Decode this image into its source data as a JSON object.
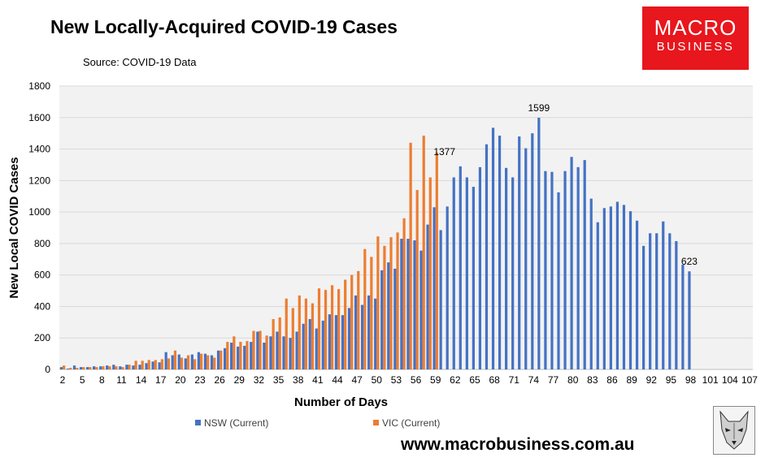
{
  "header": {
    "title": "New Locally-Acquired COVID-19 Cases",
    "source": "Source: COVID-19 Data"
  },
  "logo": {
    "line1": "MACRO",
    "line2": "BUSINESS"
  },
  "footer": {
    "url": "www.macrobusiness.com.au"
  },
  "colors": {
    "nsw": "#4472C4",
    "vic": "#ED7D31",
    "grid": "#D9D9D9",
    "plot_bg": "#F2F2F2",
    "logo_bg": "#E8161D"
  },
  "chart_data": {
    "type": "bar",
    "title": "New Locally-Acquired COVID-19 Cases",
    "xlabel": "Number of Days",
    "ylabel": "New Local COVID Cases",
    "ylim": [
      0,
      1800
    ],
    "yticks": [
      0,
      200,
      400,
      600,
      800,
      1000,
      1200,
      1400,
      1600,
      1800
    ],
    "xlim": [
      2,
      107
    ],
    "xticks": [
      2,
      5,
      8,
      11,
      14,
      17,
      20,
      23,
      26,
      29,
      32,
      35,
      38,
      41,
      44,
      47,
      50,
      53,
      56,
      59,
      62,
      65,
      68,
      71,
      74,
      77,
      80,
      83,
      86,
      89,
      92,
      95,
      98,
      101,
      104,
      107
    ],
    "legend_position": "bottom",
    "series": [
      {
        "name": "NSW (Current)",
        "color": "#4472C4",
        "start_day": 2,
        "values": [
          15,
          5,
          25,
          15,
          15,
          20,
          20,
          25,
          30,
          20,
          30,
          25,
          30,
          40,
          50,
          45,
          110,
          90,
          95,
          70,
          95,
          110,
          100,
          90,
          120,
          135,
          170,
          145,
          150,
          175,
          240,
          170,
          210,
          240,
          210,
          200,
          240,
          290,
          320,
          260,
          310,
          350,
          345,
          345,
          390,
          470,
          410,
          470,
          450,
          630,
          680,
          640,
          830,
          830,
          820,
          755,
          920,
          1030,
          885,
          1035,
          1220,
          1290,
          1220,
          1160,
          1285,
          1430,
          1535,
          1485,
          1280,
          1220,
          1480,
          1405,
          1500,
          1599,
          1260,
          1255,
          1125,
          1260,
          1350,
          1285,
          1330,
          1085,
          935,
          1025,
          1035,
          1065,
          1045,
          1005,
          945,
          785,
          865,
          865,
          940,
          865,
          815,
          665,
          623
        ]
      },
      {
        "name": "VIC (Current)",
        "color": "#ED7D31",
        "start_day": 2,
        "values": [
          25,
          10,
          10,
          15,
          15,
          15,
          20,
          20,
          20,
          15,
          30,
          55,
          55,
          60,
          60,
          65,
          70,
          120,
          75,
          90,
          65,
          100,
          90,
          75,
          120,
          175,
          210,
          175,
          180,
          245,
          245,
          215,
          320,
          330,
          450,
          390,
          470,
          450,
          420,
          515,
          505,
          535,
          510,
          570,
          600,
          625,
          765,
          715,
          845,
          785,
          840,
          870,
          960,
          1440,
          1140,
          1485,
          1220,
          1377
        ]
      }
    ],
    "data_labels": [
      {
        "series": "VIC (Current)",
        "day": 59,
        "value": 1377,
        "text": "1377"
      },
      {
        "series": "NSW (Current)",
        "day": 75,
        "value": 1599,
        "text": "1599"
      },
      {
        "series": "NSW (Current)",
        "day": 98,
        "value": 623,
        "text": "623"
      }
    ]
  }
}
